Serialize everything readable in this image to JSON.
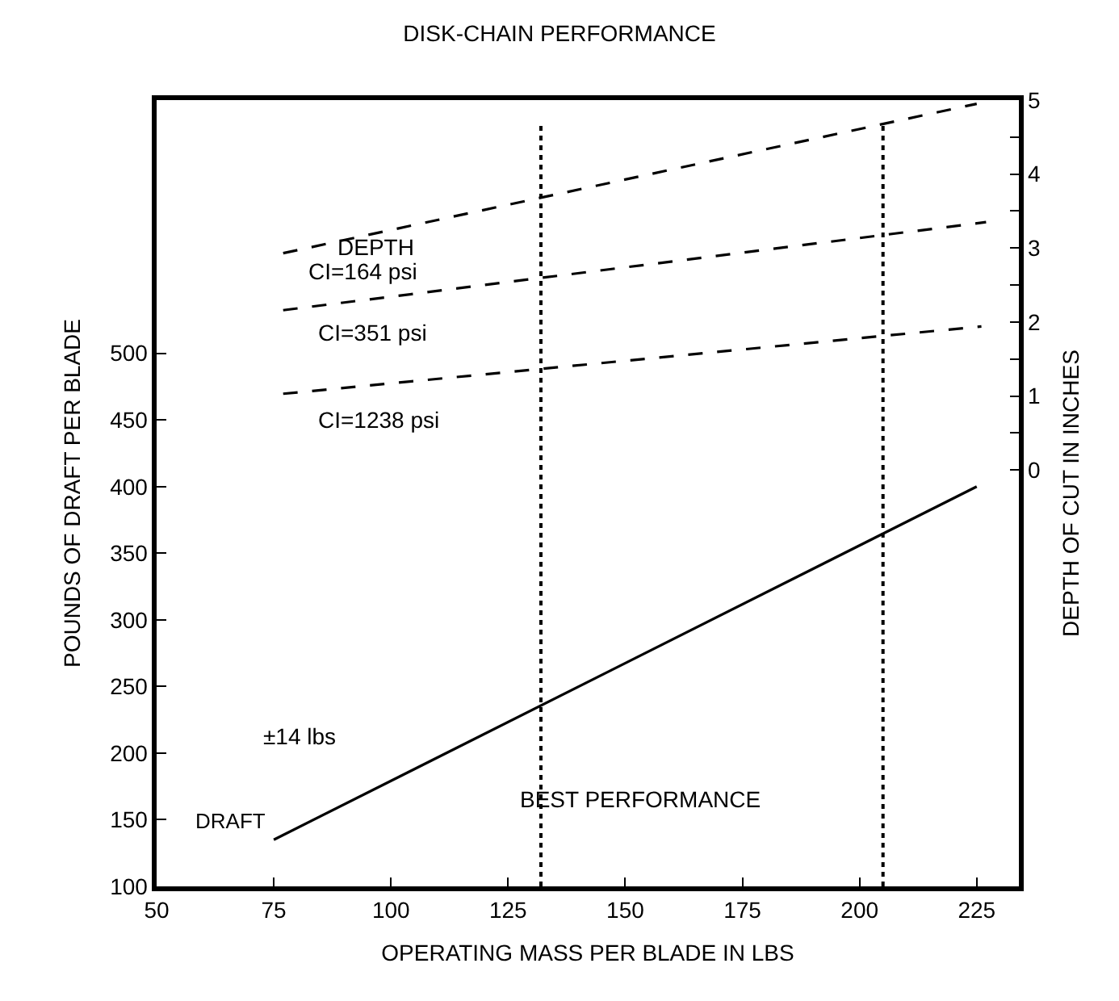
{
  "chart_data": {
    "type": "line",
    "title": "DISK-CHAIN PERFORMANCE",
    "xlabel": "OPERATING MASS PER BLADE IN LBS",
    "ylabel": "POUNDS OF DRAFT PER BLADE",
    "y2label": "DEPTH OF CUT IN INCHES",
    "xlim": [
      50,
      234
    ],
    "xticks": [
      50,
      75,
      100,
      125,
      150,
      175,
      200,
      225
    ],
    "ylim": [
      100,
      690
    ],
    "yticks": [
      100,
      150,
      200,
      250,
      300,
      350,
      400,
      450,
      500
    ],
    "y2lim": [
      -5.63,
      5
    ],
    "y2ticks": [
      0,
      {
        "value": 0.5,
        "label": null
      },
      1,
      {
        "value": 1.5,
        "label": null
      },
      2,
      {
        "value": 2.5,
        "label": null
      },
      3,
      {
        "value": 3.5,
        "label": null
      },
      4,
      {
        "value": 4.5,
        "label": null
      },
      5
    ],
    "marker": "none",
    "series": [
      {
        "name": "DRAFT",
        "color": "#000000",
        "x": [
          75,
          225
        ],
        "values": [
          135,
          400
        ],
        "line_style": "solid"
      },
      {
        "name": "CI=164 psi",
        "color": "#000000",
        "x": [
          77,
          225
        ],
        "values": [
          2.93,
          4.95
        ],
        "axis": "y2",
        "line_style": "dashed"
      },
      {
        "name": "CI=351 psi",
        "color": "#000000",
        "x": [
          77,
          227
        ],
        "values": [
          2.16,
          3.35
        ],
        "axis": "y2",
        "line_style": "dashed"
      },
      {
        "name": "CI=1238 psi",
        "color": "#000000",
        "x": [
          77,
          226
        ],
        "values": [
          1.03,
          1.94
        ],
        "axis": "y2",
        "line_style": "dashed"
      }
    ],
    "ref_lines": [
      {
        "axis": "x",
        "value": 132,
        "line_style": "dotted",
        "color": "#000000"
      },
      {
        "axis": "x",
        "value": 205,
        "line_style": "dotted",
        "color": "#000000"
      }
    ],
    "annotations": [
      {
        "text": "DEPTH",
        "x": 88,
        "y": 580
      },
      "±14 lbs",
      "BEST PERFORMANCE"
    ]
  }
}
